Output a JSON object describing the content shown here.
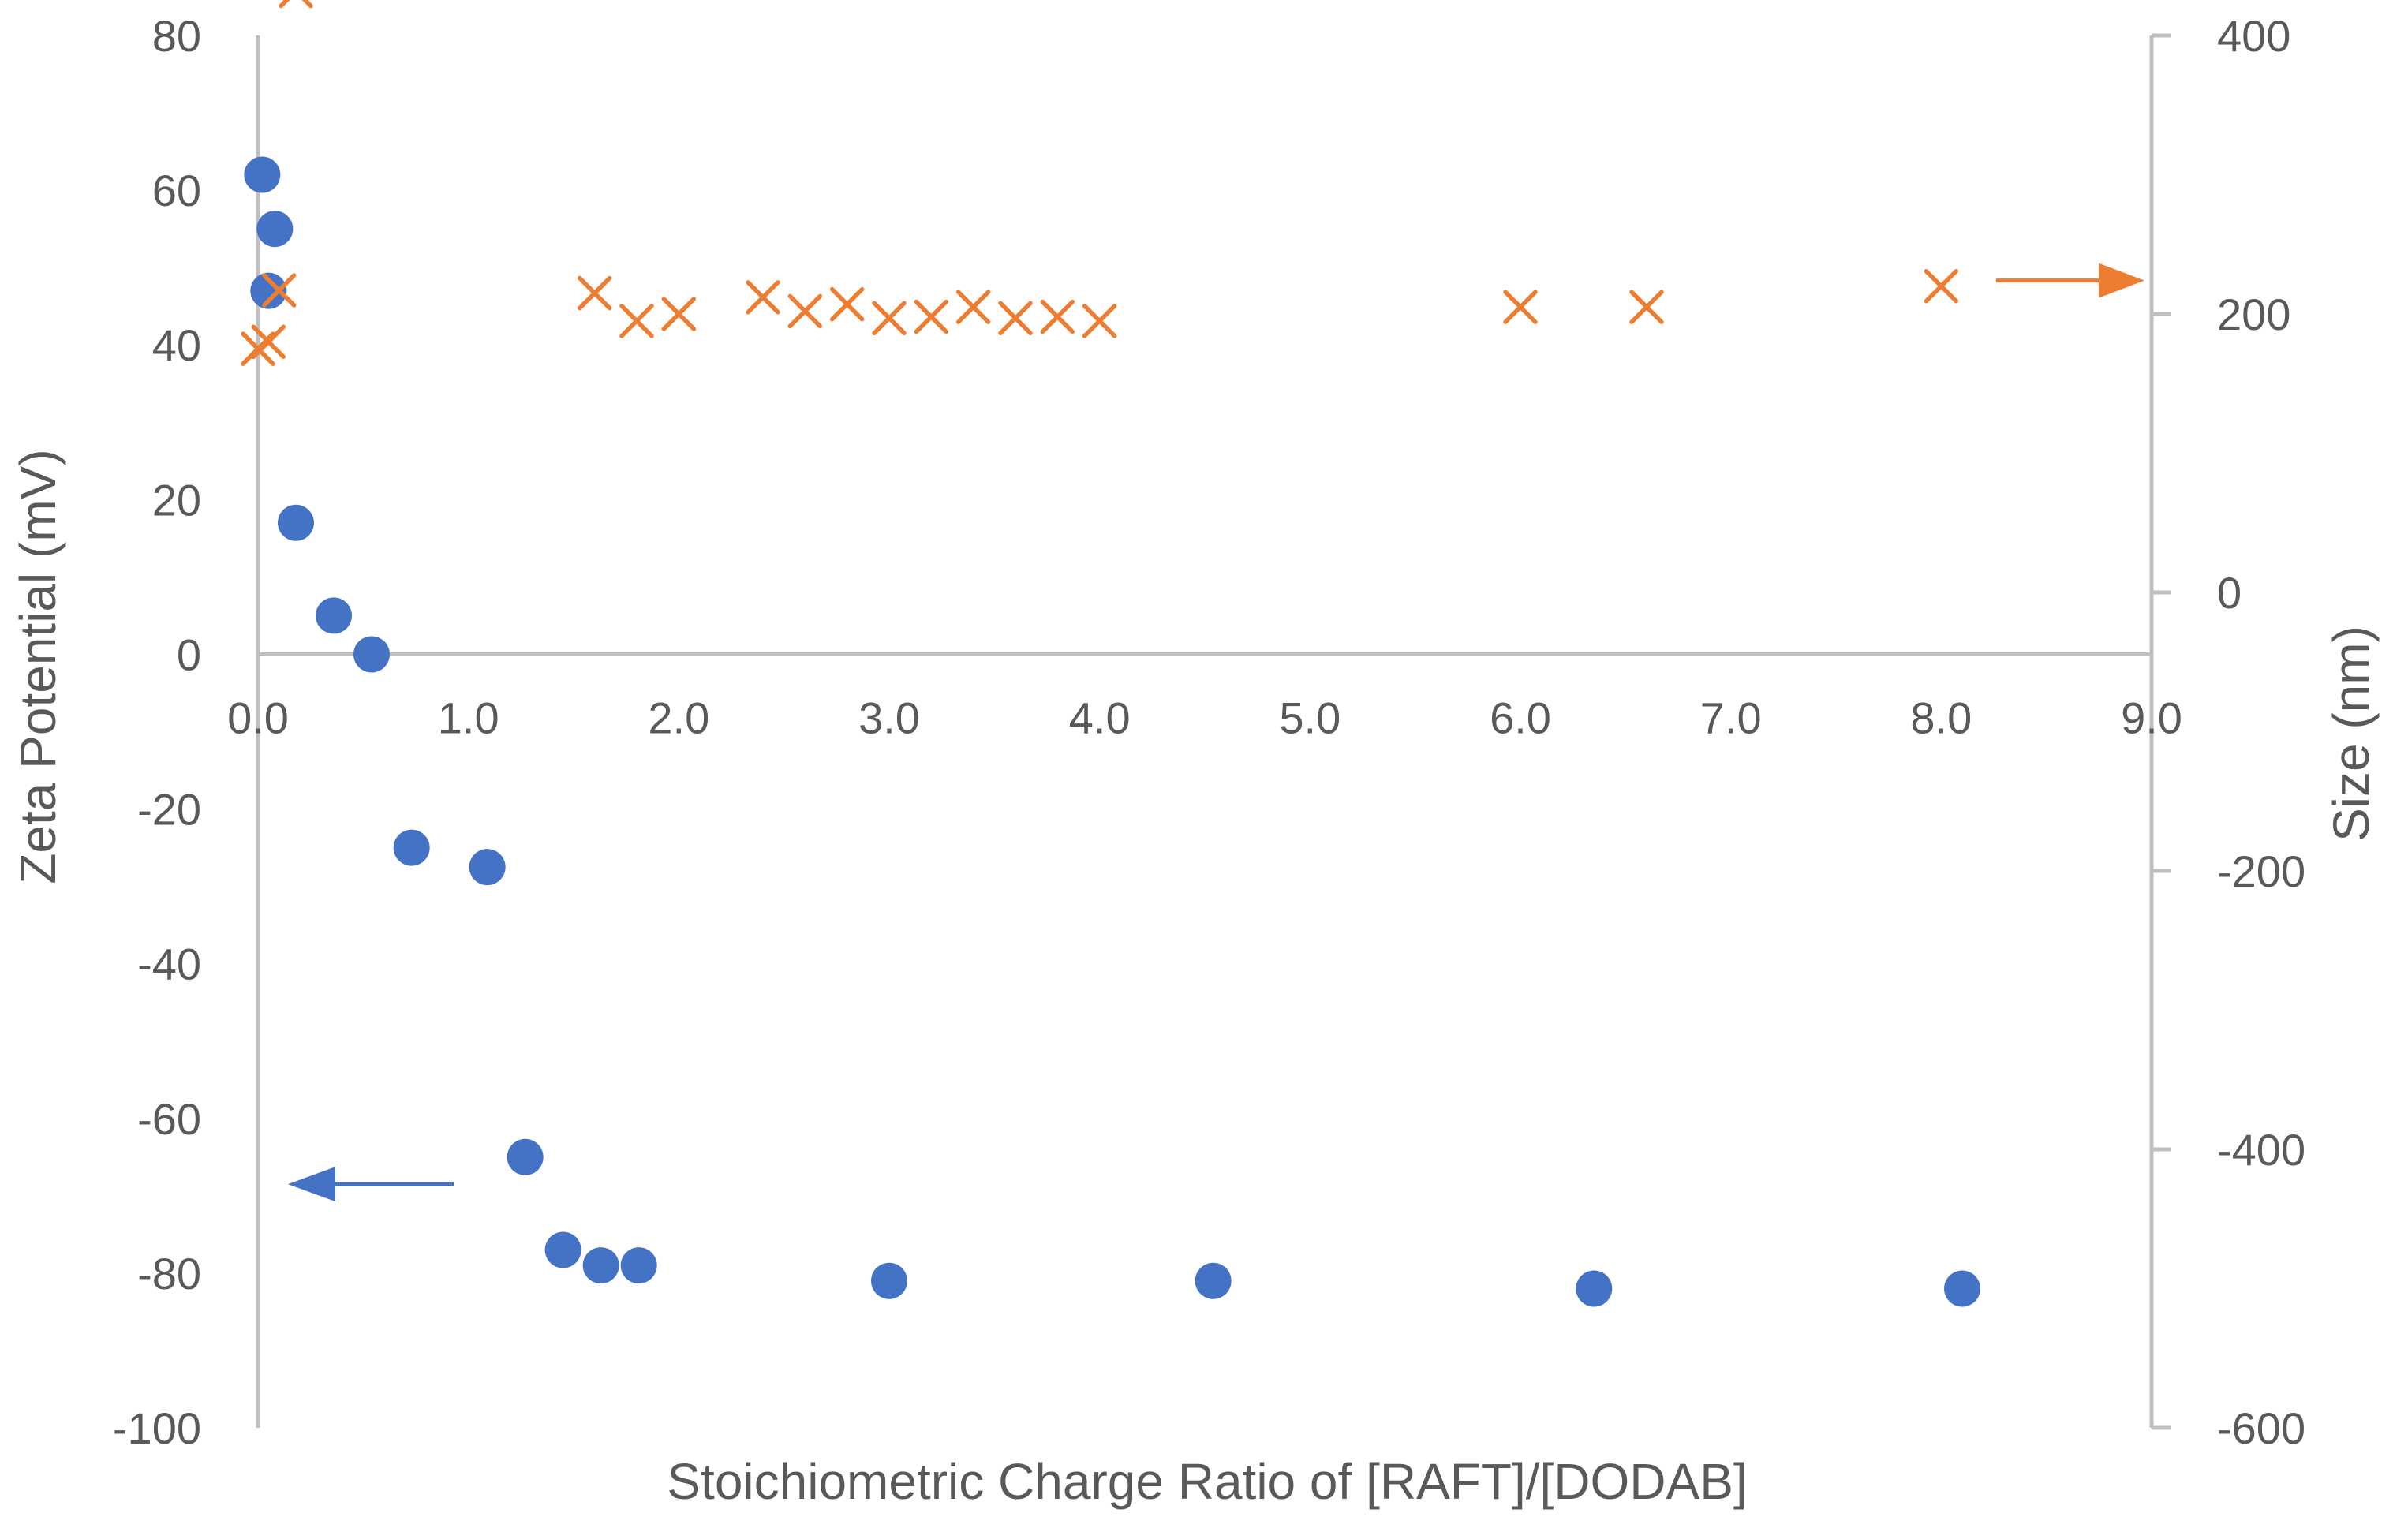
{
  "chart_data": {
    "type": "scatter",
    "xlabel": "Stoichiometric Charge Ratio of [RAFT]/[DODAB]",
    "ylabel": "Zeta Potential (mV)",
    "y2label": "Size (nm)",
    "xlim": [
      0,
      9
    ],
    "ylim": [
      -100,
      80
    ],
    "y2lim": [
      -600,
      400
    ],
    "x_ticks": [
      "0.0",
      "1.0",
      "2.0",
      "3.0",
      "4.0",
      "5.0",
      "6.0",
      "7.0",
      "8.0",
      "9.0"
    ],
    "y_ticks": [
      "80",
      "60",
      "40",
      "20",
      "0",
      "-20",
      "-40",
      "-60",
      "-80",
      "-100"
    ],
    "y2_ticks": [
      "400",
      "200",
      "0",
      "-200",
      "-400",
      "-600"
    ],
    "grid": false,
    "legend": "none",
    "colors": {
      "zeta": "#4472C4",
      "size": "#ED7D31",
      "axis": "#BFBFBF",
      "text": "#595959"
    },
    "series": [
      {
        "axis": "left",
        "marker": "circle",
        "x": [
          0.02,
          0.08,
          0.05,
          0.18,
          0.36,
          0.54,
          0.73,
          1.09,
          1.27,
          1.45,
          1.63,
          1.81,
          3.0,
          4.54,
          6.35,
          8.1
        ],
        "y": [
          62,
          55,
          47,
          17,
          5,
          0,
          -25,
          -27.5,
          -65,
          -77,
          -79,
          -79,
          -81,
          -81,
          -82,
          -82
        ]
      },
      {
        "axis": "right",
        "marker": "x",
        "x": [
          0.0,
          0.05,
          0.1,
          0.18,
          1.6,
          1.8,
          2.0,
          2.4,
          2.6,
          2.8,
          3.0,
          3.2,
          3.4,
          3.6,
          3.8,
          4.0,
          6.0,
          6.6,
          8.0
        ],
        "y": [
          175,
          180,
          217,
          432,
          215,
          195,
          200,
          212,
          202,
          207,
          197,
          198,
          205,
          197,
          198,
          195,
          205,
          205,
          220
        ]
      }
    ],
    "annotations": [
      {
        "type": "arrow",
        "direction": "left",
        "series": "zeta"
      },
      {
        "type": "arrow",
        "direction": "right",
        "series": "size"
      }
    ]
  }
}
